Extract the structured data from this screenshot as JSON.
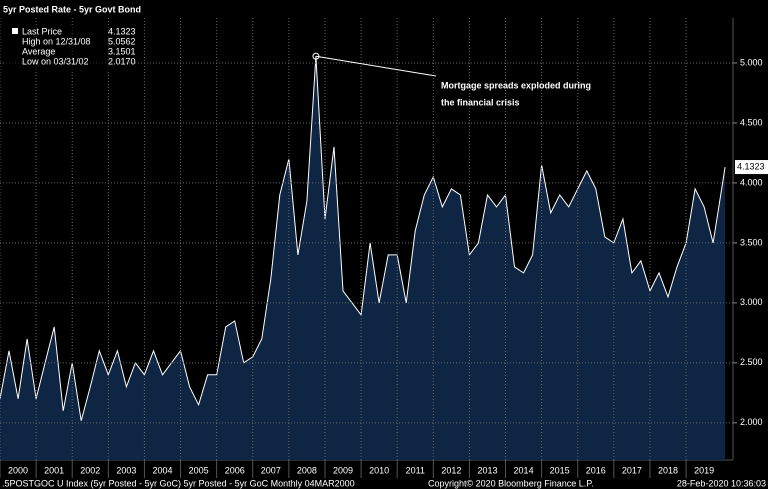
{
  "chart_data": {
    "type": "area",
    "title": "5yr Posted Rate - 5yr Govt Bond",
    "legend": [
      {
        "label": "Last Price",
        "value": 4.1323
      },
      {
        "label": "High on 12/31/08",
        "value": 5.0562
      },
      {
        "label": "Average",
        "value": 3.1501
      },
      {
        "label": "Low on 03/31/02",
        "value": 2.017,
        "value_label": "2.0170"
      }
    ],
    "annotation": [
      "Mortgage spreads exploded during",
      "the financial crisis"
    ],
    "footer": [
      ".5POSTGOC U Index (5yr Posted - 5yr GoC) 5yr Posted - 5yr GoC  Monthly 04MAR2000",
      "Copyright© 2020 Bloomberg Finance L.P.",
      "28-Feb-2020 10:36:03"
    ],
    "x": [
      2000,
      2000.25,
      2000.5,
      2000.75,
      2001,
      2001.25,
      2001.5,
      2001.75,
      2002,
      2002.25,
      2002.5,
      2002.75,
      2003,
      2003.25,
      2003.5,
      2003.75,
      2004,
      2004.25,
      2004.5,
      2004.75,
      2005,
      2005.25,
      2005.5,
      2005.75,
      2006,
      2006.25,
      2006.5,
      2006.75,
      2007,
      2007.25,
      2007.5,
      2007.75,
      2008,
      2008.25,
      2008.5,
      2008.75,
      2009,
      2009.25,
      2009.5,
      2009.75,
      2010,
      2010.25,
      2010.5,
      2010.75,
      2011,
      2011.25,
      2011.5,
      2011.75,
      2012,
      2012.25,
      2012.5,
      2012.75,
      2013,
      2013.25,
      2013.5,
      2013.75,
      2014,
      2014.25,
      2014.5,
      2014.75,
      2015,
      2015.25,
      2015.5,
      2015.75,
      2016,
      2016.25,
      2016.5,
      2016.75,
      2017,
      2017.25,
      2017.5,
      2017.75,
      2018,
      2018.25,
      2018.5,
      2018.75,
      2019,
      2019.25,
      2019.5,
      2019.75,
      2020.08
    ],
    "series": [
      {
        "name": "5yr Posted - 5yr GoC",
        "color": "#ffffff",
        "fill": "#0e2544",
        "values": [
          2.2,
          2.6,
          2.2,
          2.7,
          2.2,
          2.5,
          2.8,
          2.1,
          2.5,
          2.017,
          2.3,
          2.6,
          2.4,
          2.6,
          2.3,
          2.5,
          2.4,
          2.6,
          2.4,
          2.5,
          2.6,
          2.3,
          2.15,
          2.4,
          2.4,
          2.8,
          2.85,
          2.5,
          2.55,
          2.7,
          3.2,
          3.9,
          4.2,
          3.4,
          3.85,
          5.0562,
          3.7,
          4.3,
          3.1,
          3.0,
          2.9,
          3.5,
          3.0,
          3.4,
          3.4,
          3.0,
          3.6,
          3.9,
          4.05,
          3.8,
          3.95,
          3.9,
          3.4,
          3.5,
          3.9,
          3.8,
          3.9,
          3.3,
          3.25,
          3.4,
          4.15,
          3.75,
          3.9,
          3.8,
          3.95,
          4.1,
          3.95,
          3.55,
          3.5,
          3.7,
          3.25,
          3.35,
          3.1,
          3.25,
          3.05,
          3.3,
          3.5,
          3.95,
          3.8,
          3.5,
          4.1323
        ]
      }
    ],
    "xlim": [
      2000,
      2020.3
    ],
    "xticks": [
      2000,
      2001,
      2002,
      2003,
      2004,
      2005,
      2006,
      2007,
      2008,
      2009,
      2010,
      2011,
      2012,
      2013,
      2014,
      2015,
      2016,
      2017,
      2018,
      2019
    ],
    "ylim": [
      1.69,
      5.375
    ],
    "yticks": [
      {
        "value": 2,
        "label": "2.000"
      },
      {
        "value": 2.5,
        "label": "2.500"
      },
      {
        "value": 3,
        "label": "3.000"
      },
      {
        "value": 3.5,
        "label": "3.500"
      },
      {
        "value": 4,
        "label": "4.000"
      },
      {
        "value": 4.5,
        "label": "4.500"
      },
      {
        "value": 5,
        "label": "5.000"
      }
    ],
    "grid": true
  }
}
